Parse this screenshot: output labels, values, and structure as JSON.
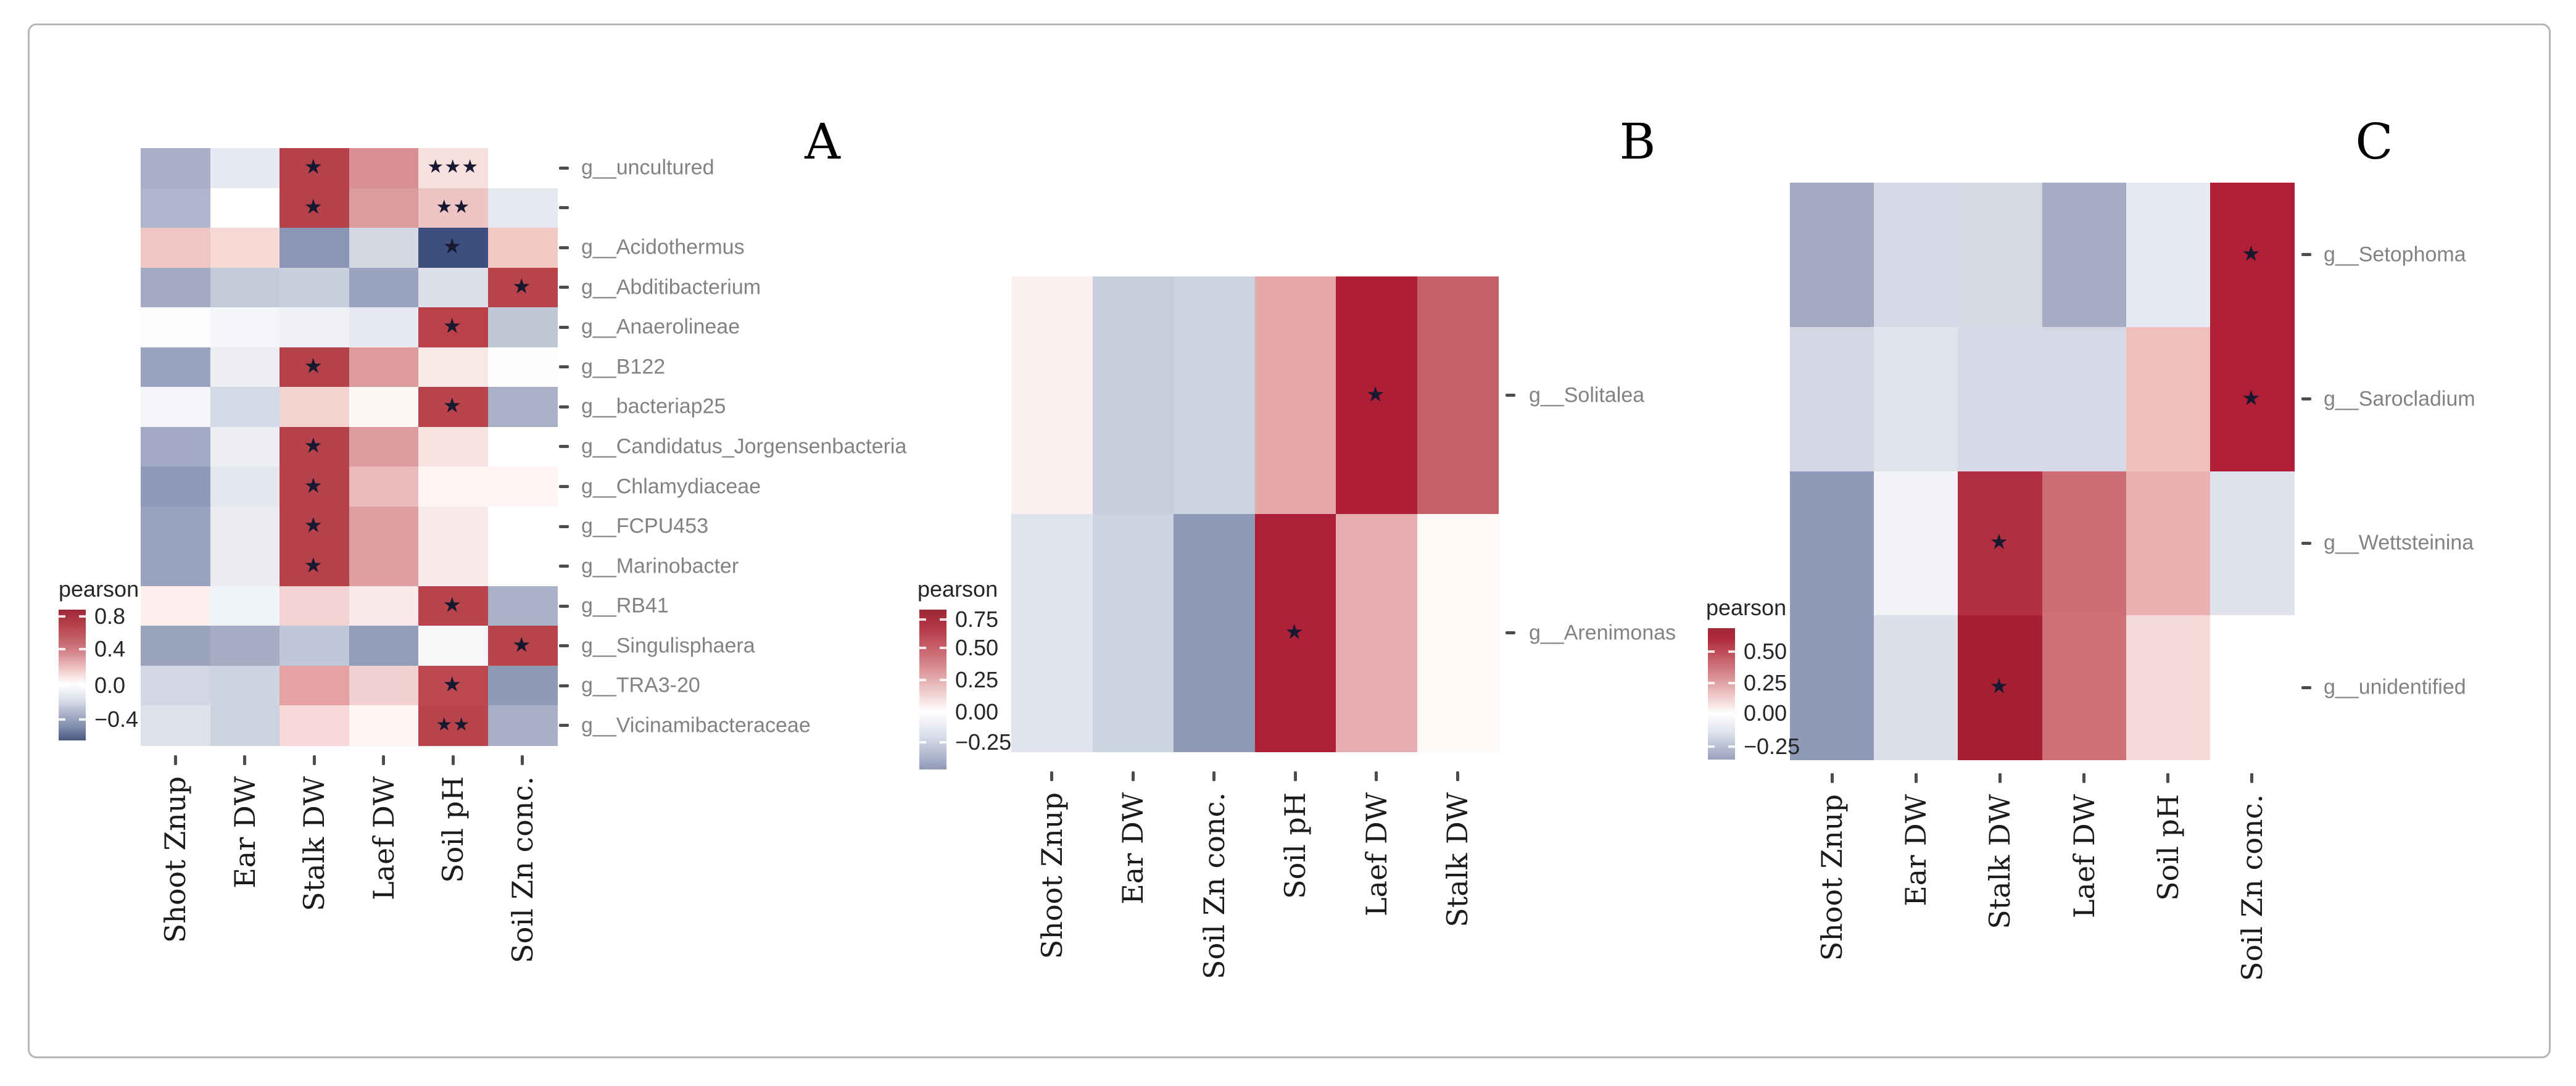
{
  "figure": {
    "background": "#ffffff",
    "border_color": "#b6b6b6",
    "significance_symbol": "★"
  },
  "chart_data": [
    {
      "panel_letter": "A",
      "type": "heatmap",
      "legend_title": "pearson",
      "legend_position": "left",
      "colormap": "red-white-blue",
      "color_positive_max": "#9c2837",
      "color_negative_min": "#49597f",
      "legend_ticks": [
        {
          "label": "0.8",
          "pos_pct": 5
        },
        {
          "label": "0.4",
          "pos_pct": 30
        },
        {
          "label": "0.0",
          "pos_pct": 58
        },
        {
          "label": "−0.4",
          "pos_pct": 84
        }
      ],
      "columns": [
        "Shoot Znup",
        "Ear DW",
        "Stalk DW",
        "Laef DW",
        "Soil pH",
        "Soil Zn conc."
      ],
      "rows": [
        {
          "label": "g__uncultured",
          "values": [
            -0.27,
            -0.05,
            0.78,
            0.45,
            0.1,
            0.0
          ],
          "colors": [
            "#a9aec8",
            "#e8eaf1",
            "#b5424b",
            "#d88f92",
            "#f6dfdf",
            "#ffffff"
          ],
          "sig": [
            "",
            "",
            "*",
            "",
            "***",
            ""
          ]
        },
        {
          "label": "",
          "values": [
            -0.24,
            0.0,
            0.78,
            0.4,
            0.2,
            -0.05
          ],
          "colors": [
            "#b0b5cd",
            "#ffffff",
            "#b5424b",
            "#dc9c9e",
            "#eec5c5",
            "#e7e9f0"
          ],
          "sig": [
            "",
            "",
            "*",
            "",
            "**",
            ""
          ]
        },
        {
          "label": "g__Acidothermus",
          "values": [
            0.22,
            0.12,
            -0.37,
            -0.12,
            -0.55,
            0.2
          ],
          "colors": [
            "#f0c6c2",
            "#f7d8d5",
            "#8b96b6",
            "#d4d8e3",
            "#3c4f7f",
            "#f4c9c4"
          ],
          "sig": [
            "",
            "",
            "",
            "",
            "*",
            ""
          ]
        },
        {
          "label": "g__Abditibacterium",
          "values": [
            -0.26,
            -0.18,
            -0.16,
            -0.3,
            -0.1,
            0.76
          ],
          "colors": [
            "#a3abc4",
            "#c3cada",
            "#c8cedd",
            "#9aa4bf",
            "#dde0ea",
            "#b8434a"
          ],
          "sig": [
            "",
            "",
            "",
            "",
            "",
            "*"
          ]
        },
        {
          "label": "g__Anaerolineae",
          "values": [
            0.01,
            0.0,
            -0.04,
            -0.07,
            0.72,
            -0.2
          ],
          "colors": [
            "#fcfbfd",
            "#f5f6f9",
            "#eff1f6",
            "#e6e9f1",
            "#bb4048",
            "#c0c7d7"
          ],
          "sig": [
            "",
            "",
            "",
            "",
            "*",
            ""
          ]
        },
        {
          "label": "g__B122",
          "values": [
            -0.3,
            -0.05,
            0.78,
            0.42,
            0.08,
            0.0
          ],
          "colors": [
            "#9ba4be",
            "#eceef4",
            "#b5424b",
            "#dd9b9b",
            "#fae8e7",
            "#fefefe"
          ],
          "sig": [
            "",
            "",
            "*",
            "",
            "",
            ""
          ]
        },
        {
          "label": "g__bacteriap25",
          "values": [
            0.02,
            -0.13,
            0.15,
            0.01,
            0.72,
            -0.27
          ],
          "colors": [
            "#f4f5f9",
            "#d4d9e6",
            "#f5d3d1",
            "#fdf8f5",
            "#bb434b",
            "#a9b1c7"
          ],
          "sig": [
            "",
            "",
            "",
            "",
            "*",
            ""
          ]
        },
        {
          "label": "g__Candidatus_Jorgensenbacteria",
          "values": [
            -0.28,
            -0.05,
            0.78,
            0.4,
            0.1,
            0.0
          ],
          "colors": [
            "#a3aac6",
            "#eceef3",
            "#b5424b",
            "#dc9c9e",
            "#f7e3e2",
            "#ffffff"
          ],
          "sig": [
            "",
            "",
            "*",
            "",
            "",
            ""
          ]
        },
        {
          "label": "g__Chlamydiaceae",
          "values": [
            -0.35,
            -0.1,
            0.78,
            0.28,
            0.03,
            0.02
          ],
          "colors": [
            "#8f99b9",
            "#e4e7ee",
            "#b5424b",
            "#eab9b9",
            "#fdf4f3",
            "#fdf6f5"
          ],
          "sig": [
            "",
            "",
            "*",
            "",
            "",
            ""
          ]
        },
        {
          "label": "g__FCPU453",
          "values": [
            -0.3,
            -0.06,
            0.78,
            0.42,
            0.09,
            0.0
          ],
          "colors": [
            "#9aa3c0",
            "#eaecf2",
            "#b5424b",
            "#df9f9f",
            "#f9e9e8",
            "#ffffff"
          ],
          "sig": [
            "",
            "",
            "*",
            "",
            "",
            ""
          ]
        },
        {
          "label": "g__Marinobacter",
          "values": [
            -0.3,
            -0.06,
            0.78,
            0.42,
            0.09,
            0.0
          ],
          "colors": [
            "#9aa3c0",
            "#eaecf2",
            "#b5424b",
            "#df9f9f",
            "#f9e9e8",
            "#ffffff"
          ],
          "sig": [
            "",
            "",
            "*",
            "",
            "",
            ""
          ]
        },
        {
          "label": "g__RB41",
          "values": [
            0.05,
            0.0,
            0.17,
            0.08,
            0.74,
            -0.27
          ],
          "colors": [
            "#fdf0ee",
            "#f0f3f7",
            "#f3d3d2",
            "#fbeae9",
            "#b9444c",
            "#a9b1c8"
          ],
          "sig": [
            "",
            "",
            "",
            "",
            "*",
            ""
          ]
        },
        {
          "label": "g__Singulisphaera",
          "values": [
            -0.25,
            -0.22,
            -0.16,
            -0.3,
            -0.02,
            0.75
          ],
          "colors": [
            "#9ba4bd",
            "#a7aec4",
            "#c0c7d8",
            "#929dba",
            "#f7f7fa",
            "#b8434a"
          ],
          "sig": [
            "",
            "",
            "",
            "",
            "",
            "*"
          ]
        },
        {
          "label": "g__TRA3-20",
          "values": [
            -0.12,
            -0.14,
            0.28,
            0.15,
            0.72,
            -0.32
          ],
          "colors": [
            "#d3d7e3",
            "#ced3e0",
            "#e4a3a2",
            "#f2d2d0",
            "#bc4850",
            "#8f9ab8"
          ],
          "sig": [
            "",
            "",
            "",
            "",
            "*",
            ""
          ]
        },
        {
          "label": "g__Vicinamibacteraceae",
          "values": [
            -0.09,
            -0.15,
            0.14,
            0.03,
            0.74,
            -0.25
          ],
          "colors": [
            "#dde1ea",
            "#ccd2de",
            "#f6d9d6",
            "#fdf6f4",
            "#b8434a",
            "#a8b0c7"
          ],
          "sig": [
            "",
            "",
            "",
            "",
            "**",
            ""
          ]
        }
      ]
    },
    {
      "panel_letter": "B",
      "type": "heatmap",
      "legend_title": "pearson",
      "legend_position": "left",
      "colormap": "red-white-blue",
      "color_positive_max": "#9c2837",
      "color_negative_min": "#8f9ab8",
      "legend_ticks": [
        {
          "label": "0.75",
          "pos_pct": 6
        },
        {
          "label": "0.50",
          "pos_pct": 24
        },
        {
          "label": "0.25",
          "pos_pct": 44
        },
        {
          "label": "0.00",
          "pos_pct": 64
        },
        {
          "label": "−0.25",
          "pos_pct": 83
        }
      ],
      "columns": [
        "Shoot Znup",
        "Ear DW",
        "Soil Zn conc.",
        "Soil pH",
        "Laef DW",
        "Stalk DW"
      ],
      "rows": [
        {
          "label": "g__Solitalea",
          "values": [
            0.04,
            -0.14,
            -0.12,
            0.35,
            0.78,
            0.55
          ],
          "colors": [
            "#fdf1f0",
            "#c6cddd",
            "#cbd2e0",
            "#e5a7a8",
            "#ae1f36",
            "#c65f66"
          ],
          "sig": [
            "",
            "",
            "",
            "",
            "*",
            ""
          ]
        },
        {
          "label": "g__Arenimonas",
          "values": [
            -0.07,
            -0.12,
            -0.26,
            0.76,
            0.34,
            0.03
          ],
          "colors": [
            "#dfe3ec",
            "#ced3e1",
            "#8e99b8",
            "#ae2138",
            "#e8adae",
            "#fef8f7"
          ],
          "sig": [
            "",
            "",
            "",
            "*",
            "",
            ""
          ]
        }
      ]
    },
    {
      "panel_letter": "C",
      "type": "heatmap",
      "legend_title": "pearson",
      "legend_position": "left",
      "colormap": "red-white-blue",
      "color_positive_max": "#9c2837",
      "color_negative_min": "#98a2c0",
      "legend_ticks": [
        {
          "label": "0.50",
          "pos_pct": 18
        },
        {
          "label": "0.25",
          "pos_pct": 42
        },
        {
          "label": "0.00",
          "pos_pct": 65
        },
        {
          "label": "−0.25",
          "pos_pct": 90
        }
      ],
      "columns": [
        "Shoot Znup",
        "Ear DW",
        "Stalk DW",
        "Laef DW",
        "Soil pH",
        "Soil Zn conc."
      ],
      "rows": [
        {
          "label": "g__Setophoma",
          "values": [
            -0.22,
            -0.07,
            -0.07,
            -0.2,
            -0.04,
            0.62
          ],
          "colors": [
            "#a4aac4",
            "#d6d9e5",
            "#d6d8e4",
            "#a7adc6",
            "#e8eaf2",
            "#b01f36"
          ],
          "sig": [
            "",
            "",
            "",
            "",
            "",
            "*"
          ]
        },
        {
          "label": "g__Sarocladium",
          "values": [
            -0.1,
            -0.05,
            -0.08,
            -0.09,
            0.2,
            0.62
          ],
          "colors": [
            "#d4d7e3",
            "#e0e3ec",
            "#d8dbe7",
            "#d6d9e5",
            "#f0c0bc",
            "#b01f36"
          ],
          "sig": [
            "",
            "",
            "",
            "",
            "",
            "*"
          ]
        },
        {
          "label": "g__Wettsteinina",
          "values": [
            -0.28,
            -0.02,
            0.58,
            0.38,
            0.22,
            -0.07
          ],
          "colors": [
            "#8f9ab8",
            "#f2f3f7",
            "#b12f40",
            "#cd6e74",
            "#e9b1b0",
            "#dfe2ec"
          ],
          "sig": [
            "",
            "",
            "*",
            "",
            "",
            ""
          ]
        },
        {
          "label": "g__unidentified",
          "values": [
            -0.28,
            -0.06,
            0.64,
            0.36,
            0.12,
            0.0
          ],
          "colors": [
            "#8f9ab8",
            "#dde0ea",
            "#a62031",
            "#ce7077",
            "#f5d9d7",
            "#ffffff"
          ],
          "sig": [
            "",
            "",
            "*",
            "",
            "",
            ""
          ]
        }
      ]
    }
  ]
}
